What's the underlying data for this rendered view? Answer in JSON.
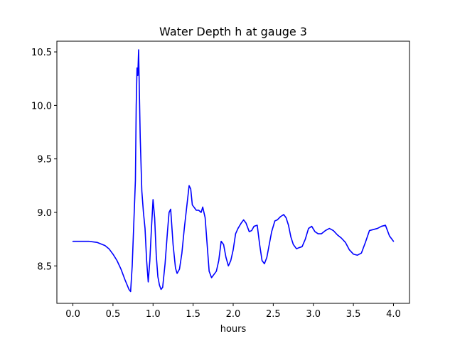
{
  "chart_data": {
    "type": "line",
    "title": "Water Depth h at gauge 3",
    "xlabel": "hours",
    "ylabel": "",
    "xlim": [
      -0.2,
      4.2
    ],
    "ylim": [
      8.15,
      10.6
    ],
    "xticks": [
      0.0,
      0.5,
      1.0,
      1.5,
      2.0,
      2.5,
      3.0,
      3.5,
      4.0
    ],
    "xtick_labels": [
      "0.0",
      "0.5",
      "1.0",
      "1.5",
      "2.0",
      "2.5",
      "3.0",
      "3.5",
      "4.0"
    ],
    "yticks": [
      8.5,
      9.0,
      9.5,
      10.0,
      10.5
    ],
    "ytick_labels": [
      "8.5",
      "9.0",
      "9.5",
      "10.0",
      "10.5"
    ],
    "grid": false,
    "series": [
      {
        "color": "#0000ff",
        "x": [
          0.0,
          0.1,
          0.2,
          0.3,
          0.4,
          0.45,
          0.5,
          0.55,
          0.6,
          0.65,
          0.7,
          0.72,
          0.74,
          0.76,
          0.78,
          0.79,
          0.8,
          0.81,
          0.82,
          0.83,
          0.84,
          0.86,
          0.88,
          0.9,
          0.92,
          0.94,
          0.96,
          0.98,
          1.0,
          1.02,
          1.04,
          1.06,
          1.08,
          1.1,
          1.12,
          1.15,
          1.18,
          1.2,
          1.22,
          1.25,
          1.28,
          1.3,
          1.33,
          1.36,
          1.39,
          1.42,
          1.45,
          1.47,
          1.49,
          1.51,
          1.54,
          1.57,
          1.6,
          1.62,
          1.65,
          1.68,
          1.7,
          1.73,
          1.76,
          1.79,
          1.82,
          1.85,
          1.88,
          1.91,
          1.94,
          1.97,
          2.0,
          2.03,
          2.06,
          2.1,
          2.13,
          2.16,
          2.2,
          2.23,
          2.26,
          2.3,
          2.33,
          2.36,
          2.39,
          2.42,
          2.45,
          2.48,
          2.52,
          2.55,
          2.59,
          2.63,
          2.66,
          2.69,
          2.72,
          2.75,
          2.79,
          2.82,
          2.86,
          2.9,
          2.94,
          2.98,
          3.02,
          3.06,
          3.1,
          3.15,
          3.2,
          3.25,
          3.3,
          3.35,
          3.4,
          3.45,
          3.5,
          3.55,
          3.6,
          3.65,
          3.7,
          3.75,
          3.8,
          3.85,
          3.9,
          3.95,
          4.0
        ],
        "y": [
          8.73,
          8.73,
          8.73,
          8.72,
          8.69,
          8.66,
          8.61,
          8.55,
          8.47,
          8.37,
          8.28,
          8.26,
          8.5,
          8.9,
          9.3,
          10.0,
          10.35,
          10.28,
          10.52,
          10.1,
          9.7,
          9.2,
          9.0,
          8.85,
          8.55,
          8.35,
          8.55,
          8.85,
          9.12,
          8.95,
          8.6,
          8.4,
          8.32,
          8.28,
          8.3,
          8.52,
          8.82,
          9.0,
          9.03,
          8.7,
          8.48,
          8.43,
          8.47,
          8.62,
          8.85,
          9.05,
          9.25,
          9.22,
          9.07,
          9.05,
          9.02,
          9.02,
          9.0,
          9.05,
          8.95,
          8.65,
          8.45,
          8.39,
          8.42,
          8.45,
          8.55,
          8.73,
          8.7,
          8.58,
          8.5,
          8.55,
          8.65,
          8.8,
          8.85,
          8.9,
          8.93,
          8.9,
          8.82,
          8.83,
          8.87,
          8.88,
          8.7,
          8.55,
          8.52,
          8.58,
          8.7,
          8.82,
          8.92,
          8.93,
          8.96,
          8.98,
          8.95,
          8.88,
          8.77,
          8.7,
          8.66,
          8.67,
          8.68,
          8.75,
          8.85,
          8.87,
          8.82,
          8.8,
          8.8,
          8.83,
          8.85,
          8.83,
          8.79,
          8.76,
          8.72,
          8.65,
          8.61,
          8.6,
          8.62,
          8.72,
          8.83,
          8.84,
          8.85,
          8.87,
          8.88,
          8.78,
          8.73
        ]
      }
    ]
  }
}
